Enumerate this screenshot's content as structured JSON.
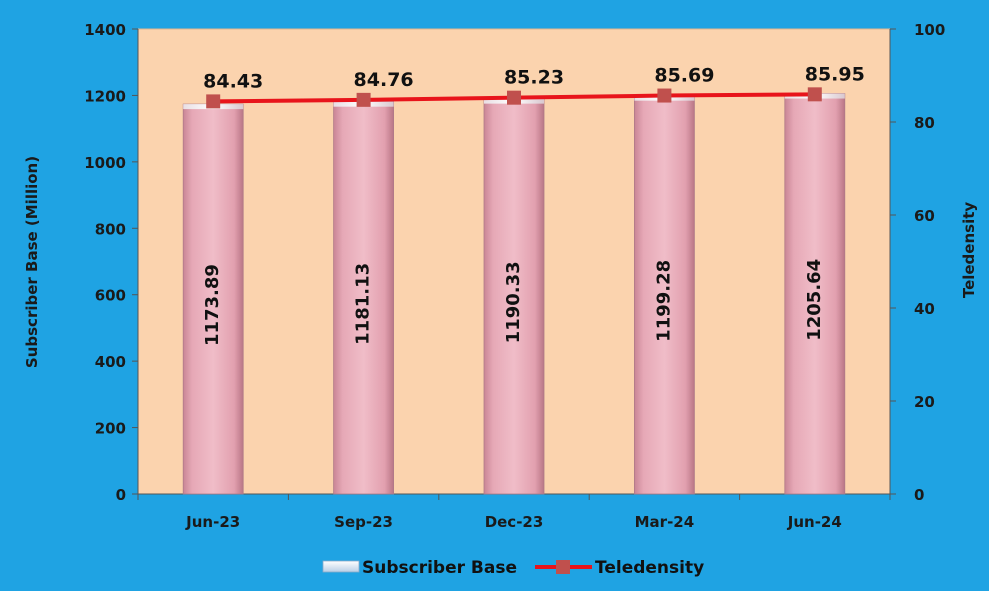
{
  "chart_data": {
    "type": "bar",
    "categories": [
      "Jun-23",
      "Sep-23",
      "Dec-23",
      "Mar-24",
      "Jun-24"
    ],
    "series": [
      {
        "name": "Subscriber Base",
        "kind": "bar",
        "axis": "left",
        "values": [
          1173.89,
          1181.13,
          1190.33,
          1199.28,
          1205.64
        ]
      },
      {
        "name": "Teledensity",
        "kind": "line",
        "axis": "right",
        "values": [
          84.43,
          84.76,
          85.23,
          85.69,
          85.95
        ]
      }
    ],
    "ylabel": "Subscriber Base (Million)",
    "y2label": "Teledensity",
    "ylim": [
      0,
      1400
    ],
    "y2lim": [
      0,
      100
    ],
    "yticks": [
      0,
      200,
      400,
      600,
      800,
      1000,
      1200,
      1400
    ],
    "y2ticks": [
      0,
      20,
      40,
      60,
      80,
      100
    ],
    "legend_position": "bottom",
    "colors": {
      "background": "#1fa3e3",
      "plot_area": "#fbd3ae",
      "bar_fill": "#e8a9b8",
      "line": "#e8141b",
      "marker": "#c0504d"
    }
  }
}
